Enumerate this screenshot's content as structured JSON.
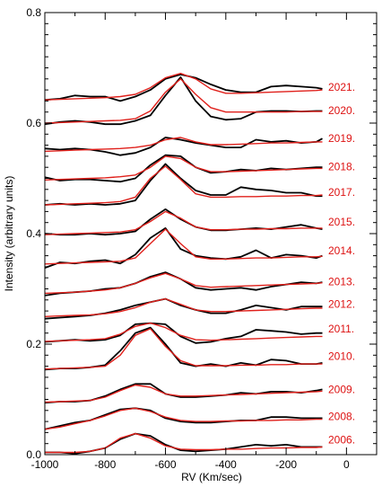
{
  "chart_data": {
    "type": "line",
    "title": "",
    "xlabel": "RV (Km/sec)",
    "ylabel": "Intensity (arbitrary units)",
    "xlim": [
      -1000,
      100
    ],
    "ylim": [
      0.0,
      0.8
    ],
    "x_ticks": [
      -1000,
      -800,
      -600,
      -400,
      -200,
      0
    ],
    "x_tick_labels": [
      "-1000",
      "-800",
      "-600",
      "-400",
      "-200",
      "0"
    ],
    "y_ticks": [
      0.0,
      0.2,
      0.4,
      0.6,
      0.8
    ],
    "y_tick_labels": [
      "0.0",
      "0.2",
      "0.4",
      "0.6",
      "0.8"
    ],
    "grid": false,
    "colors": {
      "observed": "#000000",
      "model": "#e0201b",
      "labels": "#dd1111"
    },
    "x": [
      -1000,
      -950,
      -900,
      -850,
      -800,
      -750,
      -700,
      -650,
      -600,
      -550,
      -500,
      -450,
      -400,
      -350,
      -300,
      -250,
      -200,
      -150,
      -100,
      -80
    ],
    "series": [
      {
        "label": "2021.",
        "baseline": 0.642,
        "observed": [
          0.642,
          0.644,
          0.65,
          0.648,
          0.648,
          0.64,
          0.648,
          0.66,
          0.68,
          0.688,
          0.682,
          0.67,
          0.66,
          0.656,
          0.656,
          0.666,
          0.668,
          0.666,
          0.664,
          0.662
        ],
        "model": [
          0.642,
          0.643,
          0.644,
          0.645,
          0.646,
          0.648,
          0.652,
          0.664,
          0.682,
          0.69,
          0.68,
          0.662,
          0.654,
          0.654,
          0.655,
          0.656,
          0.657,
          0.658,
          0.659,
          0.66
        ]
      },
      {
        "label": "2020.",
        "baseline": 0.6,
        "observed": [
          0.598,
          0.602,
          0.604,
          0.602,
          0.598,
          0.598,
          0.604,
          0.614,
          0.65,
          0.683,
          0.64,
          0.612,
          0.606,
          0.608,
          0.62,
          0.622,
          0.622,
          0.621,
          0.622,
          0.622
        ],
        "model": [
          0.6,
          0.601,
          0.602,
          0.603,
          0.604,
          0.605,
          0.608,
          0.622,
          0.656,
          0.68,
          0.652,
          0.628,
          0.62,
          0.62,
          0.62,
          0.62,
          0.62,
          0.621,
          0.621,
          0.621
        ]
      },
      {
        "label": "2019.",
        "baseline": 0.55,
        "observed": [
          0.554,
          0.552,
          0.554,
          0.552,
          0.548,
          0.542,
          0.546,
          0.556,
          0.574,
          0.57,
          0.564,
          0.56,
          0.556,
          0.556,
          0.57,
          0.566,
          0.568,
          0.564,
          0.566,
          0.572
        ],
        "model": [
          0.549,
          0.55,
          0.551,
          0.552,
          0.553,
          0.554,
          0.556,
          0.56,
          0.57,
          0.574,
          0.566,
          0.561,
          0.561,
          0.562,
          0.563,
          0.564,
          0.564,
          0.565,
          0.566,
          0.566
        ]
      },
      {
        "label": "2018.",
        "baseline": 0.498,
        "observed": [
          0.502,
          0.496,
          0.498,
          0.498,
          0.496,
          0.494,
          0.5,
          0.524,
          0.542,
          0.54,
          0.52,
          0.51,
          0.512,
          0.516,
          0.514,
          0.518,
          0.516,
          0.518,
          0.52,
          0.52
        ],
        "model": [
          0.497,
          0.498,
          0.499,
          0.5,
          0.501,
          0.503,
          0.506,
          0.52,
          0.54,
          0.536,
          0.52,
          0.512,
          0.512,
          0.513,
          0.514,
          0.515,
          0.516,
          0.517,
          0.518,
          0.518
        ]
      },
      {
        "label": "2017.",
        "baseline": 0.452,
        "observed": [
          0.452,
          0.454,
          0.452,
          0.454,
          0.452,
          0.454,
          0.46,
          0.496,
          0.526,
          0.5,
          0.478,
          0.47,
          0.47,
          0.484,
          0.48,
          0.478,
          0.474,
          0.474,
          0.468,
          0.468
        ],
        "model": [
          0.452,
          0.453,
          0.454,
          0.455,
          0.456,
          0.458,
          0.466,
          0.5,
          0.522,
          0.498,
          0.472,
          0.466,
          0.466,
          0.467,
          0.467,
          0.468,
          0.468,
          0.469,
          0.469,
          0.47
        ]
      },
      {
        "label": "2015.",
        "baseline": 0.398,
        "observed": [
          0.4,
          0.398,
          0.398,
          0.4,
          0.398,
          0.4,
          0.404,
          0.426,
          0.444,
          0.426,
          0.412,
          0.406,
          0.406,
          0.408,
          0.41,
          0.408,
          0.412,
          0.416,
          0.41,
          0.408
        ],
        "model": [
          0.398,
          0.399,
          0.4,
          0.401,
          0.402,
          0.403,
          0.407,
          0.422,
          0.44,
          0.428,
          0.412,
          0.407,
          0.407,
          0.408,
          0.408,
          0.409,
          0.409,
          0.41,
          0.41,
          0.41
        ]
      },
      {
        "label": "2014.",
        "baseline": 0.346,
        "observed": [
          0.338,
          0.348,
          0.346,
          0.35,
          0.352,
          0.346,
          0.362,
          0.392,
          0.41,
          0.372,
          0.36,
          0.356,
          0.354,
          0.358,
          0.37,
          0.356,
          0.362,
          0.36,
          0.356,
          0.36
        ],
        "model": [
          0.345,
          0.346,
          0.347,
          0.348,
          0.349,
          0.35,
          0.356,
          0.382,
          0.408,
          0.382,
          0.358,
          0.354,
          0.354,
          0.355,
          0.356,
          0.356,
          0.357,
          0.358,
          0.358,
          0.359
        ]
      },
      {
        "label": "2013.",
        "baseline": 0.29,
        "observed": [
          0.288,
          0.292,
          0.294,
          0.296,
          0.3,
          0.302,
          0.31,
          0.322,
          0.33,
          0.318,
          0.302,
          0.298,
          0.3,
          0.302,
          0.298,
          0.304,
          0.308,
          0.312,
          0.31,
          0.312
        ],
        "model": [
          0.292,
          0.293,
          0.294,
          0.296,
          0.298,
          0.302,
          0.31,
          0.32,
          0.328,
          0.318,
          0.306,
          0.303,
          0.304,
          0.305,
          0.306,
          0.307,
          0.308,
          0.309,
          0.31,
          0.311
        ]
      },
      {
        "label": "2012.",
        "baseline": 0.25,
        "observed": [
          0.246,
          0.248,
          0.25,
          0.252,
          0.256,
          0.262,
          0.27,
          0.276,
          0.282,
          0.27,
          0.262,
          0.256,
          0.256,
          0.262,
          0.27,
          0.266,
          0.262,
          0.268,
          0.268,
          0.268
        ],
        "model": [
          0.25,
          0.251,
          0.252,
          0.253,
          0.255,
          0.259,
          0.266,
          0.276,
          0.282,
          0.272,
          0.262,
          0.259,
          0.259,
          0.26,
          0.261,
          0.262,
          0.263,
          0.264,
          0.265,
          0.265
        ]
      },
      {
        "label": "2011.",
        "baseline": 0.205,
        "observed": [
          0.204,
          0.206,
          0.208,
          0.206,
          0.208,
          0.216,
          0.236,
          0.238,
          0.236,
          0.214,
          0.202,
          0.204,
          0.21,
          0.214,
          0.226,
          0.224,
          0.222,
          0.218,
          0.22,
          0.22
        ],
        "model": [
          0.205,
          0.206,
          0.207,
          0.208,
          0.21,
          0.218,
          0.232,
          0.238,
          0.23,
          0.216,
          0.208,
          0.207,
          0.208,
          0.209,
          0.21,
          0.211,
          0.212,
          0.213,
          0.214,
          0.214
        ]
      },
      {
        "label": "2010.",
        "baseline": 0.155,
        "observed": [
          0.154,
          0.156,
          0.156,
          0.158,
          0.162,
          0.188,
          0.22,
          0.23,
          0.2,
          0.166,
          0.16,
          0.164,
          0.16,
          0.166,
          0.162,
          0.172,
          0.17,
          0.164,
          0.164,
          0.166
        ],
        "model": [
          0.155,
          0.156,
          0.157,
          0.158,
          0.16,
          0.18,
          0.216,
          0.228,
          0.196,
          0.17,
          0.161,
          0.161,
          0.161,
          0.162,
          0.162,
          0.163,
          0.163,
          0.164,
          0.164,
          0.164
        ]
      },
      {
        "label": "2009.",
        "baseline": 0.095,
        "observed": [
          0.094,
          0.096,
          0.096,
          0.098,
          0.106,
          0.118,
          0.128,
          0.128,
          0.11,
          0.104,
          0.104,
          0.106,
          0.108,
          0.112,
          0.11,
          0.114,
          0.114,
          0.112,
          0.116,
          0.118
        ],
        "model": [
          0.095,
          0.096,
          0.097,
          0.098,
          0.104,
          0.116,
          0.126,
          0.122,
          0.11,
          0.106,
          0.106,
          0.107,
          0.108,
          0.109,
          0.11,
          0.111,
          0.112,
          0.113,
          0.114,
          0.115
        ]
      },
      {
        "label": "2008.",
        "baseline": 0.046,
        "observed": [
          0.046,
          0.052,
          0.058,
          0.062,
          0.072,
          0.082,
          0.084,
          0.08,
          0.066,
          0.06,
          0.058,
          0.058,
          0.06,
          0.062,
          0.062,
          0.068,
          0.068,
          0.066,
          0.066,
          0.066
        ],
        "model": [
          0.046,
          0.05,
          0.056,
          0.062,
          0.07,
          0.08,
          0.084,
          0.078,
          0.068,
          0.062,
          0.06,
          0.06,
          0.061,
          0.061,
          0.062,
          0.062,
          0.063,
          0.063,
          0.064,
          0.064
        ]
      },
      {
        "label": "2006.",
        "baseline": 0.004,
        "observed": [
          0.004,
          0.004,
          0.002,
          0.006,
          0.012,
          0.028,
          0.038,
          0.034,
          0.018,
          0.008,
          0.006,
          0.008,
          0.01,
          0.014,
          0.018,
          0.016,
          0.018,
          0.014,
          0.014,
          0.014
        ],
        "model": [
          0.004,
          0.004,
          0.004,
          0.006,
          0.012,
          0.03,
          0.038,
          0.03,
          0.016,
          0.01,
          0.009,
          0.009,
          0.01,
          0.01,
          0.011,
          0.012,
          0.012,
          0.013,
          0.013,
          0.014
        ]
      }
    ]
  }
}
